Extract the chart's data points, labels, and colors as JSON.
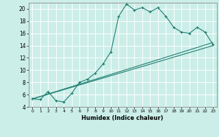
{
  "title": "",
  "xlabel": "Humidex (Indice chaleur)",
  "ylabel": "",
  "background_color": "#cceee8",
  "grid_color": "#ffffff",
  "line_color": "#1a7a6e",
  "xlim": [
    -0.5,
    23.5
  ],
  "ylim": [
    4,
    21
  ],
  "xticks": [
    0,
    1,
    2,
    3,
    4,
    5,
    6,
    7,
    8,
    9,
    10,
    11,
    12,
    13,
    14,
    15,
    16,
    17,
    18,
    19,
    20,
    21,
    22,
    23
  ],
  "yticks": [
    4,
    6,
    8,
    10,
    12,
    14,
    16,
    18,
    20
  ],
  "curve1_x": [
    0,
    1,
    2,
    3,
    4,
    5,
    6,
    7,
    8,
    9,
    10,
    11,
    12,
    13,
    14,
    15,
    16,
    17,
    18,
    19,
    20,
    21,
    22,
    23
  ],
  "curve1_y": [
    5.3,
    5.2,
    6.5,
    5.0,
    4.8,
    6.2,
    8.0,
    8.5,
    9.5,
    11.0,
    13.0,
    18.8,
    20.8,
    19.8,
    20.2,
    19.5,
    20.2,
    18.8,
    17.0,
    16.2,
    16.0,
    17.0,
    16.2,
    14.2
  ],
  "line1_x": [
    0,
    23
  ],
  "line1_y": [
    5.3,
    14.5
  ],
  "line2_x": [
    0,
    23
  ],
  "line2_y": [
    5.3,
    14.0
  ]
}
